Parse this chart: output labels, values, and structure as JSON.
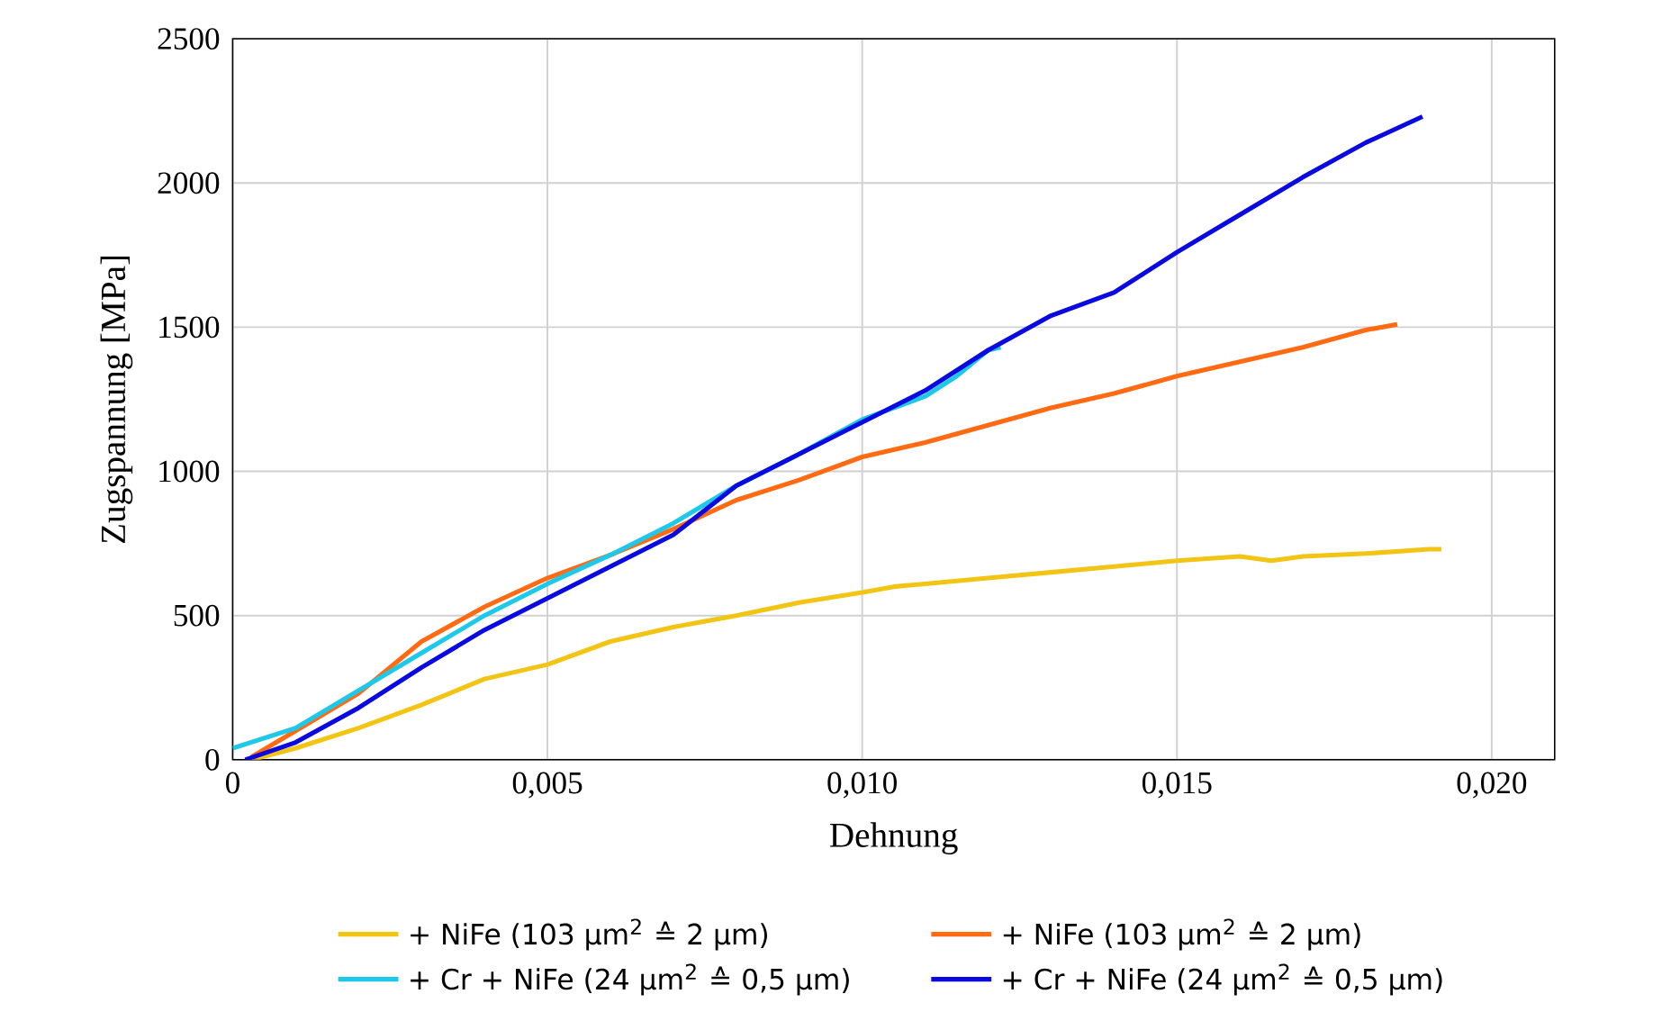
{
  "chart_data": {
    "type": "line",
    "xlabel": "Dehnung",
    "ylabel": "Zugspannung [MPa]",
    "xlim": [
      0,
      0.021
    ],
    "ylim": [
      0,
      2500
    ],
    "xticks": [
      {
        "value": 0,
        "label": "0"
      },
      {
        "value": 0.005,
        "label": "0,005"
      },
      {
        "value": 0.01,
        "label": "0,010"
      },
      {
        "value": 0.015,
        "label": "0,015"
      },
      {
        "value": 0.02,
        "label": "0,020"
      }
    ],
    "yticks": [
      0,
      500,
      1000,
      1500,
      2000,
      2500
    ],
    "grid": true,
    "legend": "bottom",
    "line_style": "solid",
    "marker": "none",
    "series": [
      {
        "name": "+ NiFe (103 µm$^{2}$ ≙ 2 µm)",
        "color": "#f2c414",
        "x": [
          0.0003,
          0.001,
          0.002,
          0.003,
          0.004,
          0.005,
          0.006,
          0.007,
          0.008,
          0.009,
          0.01,
          0.0105,
          0.011,
          0.012,
          0.013,
          0.014,
          0.015,
          0.016,
          0.0165,
          0.017,
          0.018,
          0.019,
          0.0192
        ],
        "values": [
          0,
          40,
          110,
          190,
          280,
          330,
          410,
          460,
          500,
          545,
          580,
          600,
          610,
          630,
          650,
          670,
          690,
          705,
          690,
          705,
          715,
          730,
          730
        ]
      },
      {
        "name": "+ NiFe (103 µm$^{2}$ ≙ 2 µm)",
        "color": "#ff6a13",
        "x": [
          0.0003,
          0.001,
          0.002,
          0.003,
          0.004,
          0.005,
          0.006,
          0.007,
          0.008,
          0.009,
          0.01,
          0.011,
          0.012,
          0.013,
          0.014,
          0.015,
          0.016,
          0.017,
          0.018,
          0.0185
        ],
        "values": [
          10,
          100,
          230,
          410,
          530,
          630,
          710,
          800,
          900,
          970,
          1050,
          1100,
          1160,
          1220,
          1270,
          1330,
          1380,
          1430,
          1490,
          1510
        ]
      },
      {
        "name": "+ Cr + NiFe (24 µm$^{2}$ ≙ 0,5 µm)",
        "color": "#1ec8e8",
        "x": [
          0,
          0.001,
          0.002,
          0.003,
          0.004,
          0.005,
          0.006,
          0.007,
          0.008,
          0.009,
          0.01,
          0.011,
          0.0115,
          0.012,
          0.0122
        ],
        "values": [
          40,
          110,
          240,
          370,
          500,
          610,
          710,
          820,
          950,
          1060,
          1180,
          1260,
          1330,
          1420,
          1430
        ]
      },
      {
        "name": "+ Cr + NiFe (24 µm$^{2}$ ≙ 0,5 µm)",
        "color": "#0a0ae0",
        "x": [
          0.0002,
          0.001,
          0.002,
          0.003,
          0.004,
          0.005,
          0.006,
          0.007,
          0.008,
          0.009,
          0.01,
          0.011,
          0.012,
          0.013,
          0.014,
          0.015,
          0.016,
          0.017,
          0.018,
          0.0189
        ],
        "values": [
          0,
          60,
          180,
          320,
          450,
          560,
          670,
          780,
          950,
          1060,
          1170,
          1280,
          1420,
          1540,
          1620,
          1760,
          1890,
          2020,
          2140,
          2230
        ]
      }
    ]
  }
}
